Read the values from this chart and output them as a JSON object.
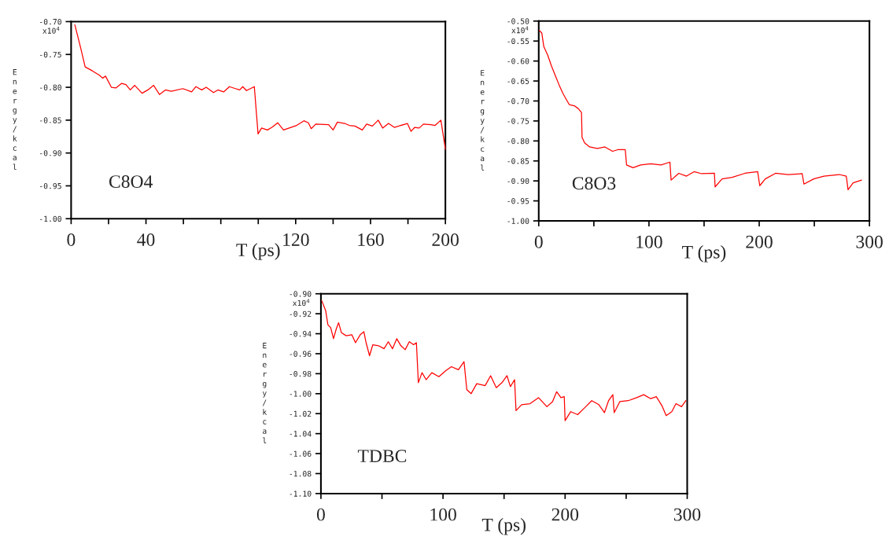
{
  "chart_data": [
    {
      "type": "line",
      "xlabel": "T (ps)",
      "ylabel": "Energy/kcal",
      "annotations": [
        "x10$^{4}$",
        "C8O4"
      ],
      "grid": false,
      "line_style": "solid",
      "marker": "none",
      "xlim": [
        0,
        200
      ],
      "xticks": [
        0,
        {
          "value": 20,
          "label": null
        },
        40,
        {
          "value": 60,
          "label": null
        },
        {
          "value": 80,
          "label": null
        },
        {
          "value": 100,
          "label": null
        },
        120,
        {
          "value": 140,
          "label": null
        },
        160,
        {
          "value": 180,
          "label": null
        },
        200
      ],
      "ylim": [
        -1.0,
        -0.7
      ],
      "yticks": [
        {
          "value": -0.7,
          "label": "-0.70"
        },
        {
          "value": -0.75,
          "label": "-0.75"
        },
        {
          "value": -0.8,
          "label": "-0.80"
        },
        {
          "value": -0.85,
          "label": "-0.85"
        },
        {
          "value": -0.9,
          "label": "-0.90"
        },
        {
          "value": -0.95,
          "label": "-0.95"
        },
        {
          "value": -1.0,
          "label": "-1.00"
        }
      ],
      "x": [
        2,
        5.1,
        7.5,
        11.4,
        15.3,
        16.8,
        18.4,
        21.5,
        23.9,
        27,
        29.3,
        31.6,
        34,
        37.9,
        41,
        44.1,
        47.2,
        50.4,
        53.5,
        59.7,
        64.4,
        66.7,
        69.8,
        72.2,
        76.1,
        78.4,
        81.5,
        84.6,
        87.8,
        90.1,
        91.7,
        93.7,
        97.9,
        99.9,
        101.8,
        104.9,
        107.3,
        110.4,
        113.5,
        117.4,
        120.5,
        124.4,
        126.8,
        128.3,
        130.7,
        137.6,
        140,
        142.3,
        146.2,
        148.6,
        151.7,
        155.6,
        157.9,
        161,
        164.1,
        166.5,
        169.6,
        172.7,
        179.7,
        181.6,
        183.6,
        186,
        188.3,
        192.2,
        194.5,
        197.6,
        200
      ],
      "series": [
        {
          "color": "#ff0000",
          "values": [
            -0.705,
            -0.74,
            -0.769,
            -0.775,
            -0.782,
            -0.786,
            -0.783,
            -0.8,
            -0.801,
            -0.794,
            -0.796,
            -0.804,
            -0.797,
            -0.809,
            -0.804,
            -0.797,
            -0.811,
            -0.804,
            -0.806,
            -0.802,
            -0.807,
            -0.799,
            -0.804,
            -0.8,
            -0.808,
            -0.804,
            -0.807,
            -0.799,
            -0.802,
            -0.804,
            -0.799,
            -0.805,
            -0.799,
            -0.871,
            -0.862,
            -0.865,
            -0.861,
            -0.854,
            -0.865,
            -0.861,
            -0.858,
            -0.851,
            -0.854,
            -0.863,
            -0.856,
            -0.857,
            -0.865,
            -0.853,
            -0.855,
            -0.858,
            -0.859,
            -0.865,
            -0.856,
            -0.859,
            -0.85,
            -0.862,
            -0.855,
            -0.861,
            -0.855,
            -0.867,
            -0.861,
            -0.862,
            -0.856,
            -0.857,
            -0.858,
            -0.85,
            -0.894
          ]
        }
      ]
    },
    {
      "type": "line",
      "xlabel": "T (ps)",
      "ylabel": "Energy/kcal",
      "annotations": [
        "x10$^{4}$",
        "C8O3"
      ],
      "grid": false,
      "line_style": "solid",
      "marker": "none",
      "xlim": [
        0,
        300
      ],
      "xticks": [
        0,
        {
          "value": 50,
          "label": null
        },
        100,
        {
          "value": 150,
          "label": null
        },
        200,
        {
          "value": 250,
          "label": null
        },
        300
      ],
      "ylim": [
        -1.0,
        -0.5
      ],
      "yticks": [
        {
          "value": -0.5,
          "label": "-0.50"
        },
        {
          "value": -0.55,
          "label": "-0.55"
        },
        {
          "value": -0.6,
          "label": "-0.60"
        },
        {
          "value": -0.65,
          "label": "-0.65"
        },
        {
          "value": -0.7,
          "label": "-0.70"
        },
        {
          "value": -0.75,
          "label": "-0.75"
        },
        {
          "value": -0.8,
          "label": "-0.80"
        },
        {
          "value": -0.85,
          "label": "-0.85"
        },
        {
          "value": -0.9,
          "label": "-0.90"
        },
        {
          "value": -0.95,
          "label": "-0.95"
        },
        {
          "value": -1.0,
          "label": "-1.00"
        }
      ],
      "x": [
        0.7,
        2.8,
        4.6,
        8.1,
        11.5,
        15,
        18.5,
        21.9,
        25.4,
        27.7,
        32.3,
        35.8,
        38.8,
        39.3,
        41.6,
        46.2,
        53.1,
        60,
        67,
        71.6,
        78.5,
        79.7,
        85.5,
        92.4,
        101.6,
        110.9,
        119,
        120.1,
        127,
        134,
        140.9,
        147.8,
        159.4,
        160,
        166.3,
        175.5,
        187,
        198.6,
        200.5,
        205.5,
        214.8,
        226.3,
        239,
        240.6,
        249.4,
        258.7,
        272.5,
        279,
        280.6,
        285.2,
        292.8
      ],
      "series": [
        {
          "color": "#ff0000",
          "values": [
            -0.524,
            -0.53,
            -0.564,
            -0.585,
            -0.612,
            -0.636,
            -0.66,
            -0.681,
            -0.698,
            -0.709,
            -0.712,
            -0.719,
            -0.729,
            -0.791,
            -0.805,
            -0.815,
            -0.819,
            -0.815,
            -0.826,
            -0.822,
            -0.822,
            -0.86,
            -0.867,
            -0.86,
            -0.857,
            -0.86,
            -0.853,
            -0.898,
            -0.881,
            -0.888,
            -0.877,
            -0.882,
            -0.881,
            -0.915,
            -0.895,
            -0.891,
            -0.881,
            -0.877,
            -0.912,
            -0.895,
            -0.881,
            -0.884,
            -0.882,
            -0.908,
            -0.895,
            -0.888,
            -0.884,
            -0.888,
            -0.922,
            -0.905,
            -0.898
          ]
        }
      ]
    },
    {
      "type": "line",
      "xlabel": "T (ps)",
      "ylabel": "Energy/kcal",
      "annotations": [
        "x10$^{4}$",
        "TDBC"
      ],
      "grid": false,
      "line_style": "solid",
      "marker": "none",
      "xlim": [
        0,
        300
      ],
      "xticks": [
        0,
        {
          "value": 50,
          "label": null
        },
        100,
        {
          "value": 150,
          "label": null
        },
        200,
        {
          "value": 250,
          "label": null
        },
        300
      ],
      "ylim": [
        -1.1,
        -0.9
      ],
      "yticks": [
        {
          "value": -0.9,
          "label": "-0.90"
        },
        {
          "value": -0.92,
          "label": "-0.92"
        },
        {
          "value": -0.94,
          "label": "-0.94"
        },
        {
          "value": -0.96,
          "label": "-0.96"
        },
        {
          "value": -0.98,
          "label": "-0.98"
        },
        {
          "value": -1.0,
          "label": "-1.00"
        },
        {
          "value": -1.02,
          "label": "-1.02"
        },
        {
          "value": -1.04,
          "label": "-1.04"
        },
        {
          "value": -1.06,
          "label": "-1.06"
        },
        {
          "value": -1.08,
          "label": "-1.08"
        },
        {
          "value": -1.1,
          "label": "-1.10"
        }
      ],
      "x": [
        0.7,
        3.9,
        5.7,
        8,
        10.3,
        12.6,
        14.5,
        16.8,
        20.7,
        25.3,
        28.3,
        32.2,
        35.2,
        36.8,
        39.8,
        42.5,
        47.1,
        51.7,
        55.2,
        58.6,
        62.1,
        65.5,
        69,
        72.4,
        75.9,
        78.2,
        79.8,
        82.8,
        86.2,
        90.8,
        96.6,
        102.3,
        106.9,
        112.6,
        117.2,
        119.5,
        123,
        127.6,
        134.5,
        139,
        143.6,
        148.3,
        152.4,
        155.2,
        158.6,
        159.8,
        164.4,
        171.3,
        178.2,
        185.1,
        189.7,
        193.1,
        196.6,
        199.3,
        200,
        204.6,
        210.3,
        216.1,
        221.8,
        227.6,
        232.2,
        235.6,
        239.1,
        240.2,
        244.8,
        251.7,
        258.6,
        264.4,
        270.1,
        274.7,
        279.3,
        282.8,
        287.4,
        290.8,
        295.4,
        298.9
      ],
      "series": [
        {
          "color": "#ff0000",
          "values": [
            -0.907,
            -0.917,
            -0.931,
            -0.934,
            -0.945,
            -0.935,
            -0.929,
            -0.939,
            -0.942,
            -0.941,
            -0.949,
            -0.941,
            -0.938,
            -0.948,
            -0.962,
            -0.951,
            -0.952,
            -0.955,
            -0.948,
            -0.955,
            -0.945,
            -0.952,
            -0.956,
            -0.948,
            -0.951,
            -0.949,
            -0.989,
            -0.979,
            -0.986,
            -0.979,
            -0.983,
            -0.977,
            -0.973,
            -0.976,
            -0.968,
            -0.996,
            -1.0,
            -0.99,
            -0.992,
            -0.982,
            -0.994,
            -0.989,
            -0.982,
            -0.993,
            -0.986,
            -1.017,
            -1.011,
            -1.01,
            -1.004,
            -1.013,
            -1.008,
            -0.998,
            -1.004,
            -1.003,
            -1.027,
            -1.018,
            -1.021,
            -1.014,
            -1.007,
            -1.011,
            -1.019,
            -1.007,
            -1.001,
            -1.019,
            -1.008,
            -1.007,
            -1.004,
            -1.001,
            -1.005,
            -1.003,
            -1.012,
            -1.022,
            -1.018,
            -1.01,
            -1.013,
            -1.007
          ]
        }
      ]
    }
  ]
}
